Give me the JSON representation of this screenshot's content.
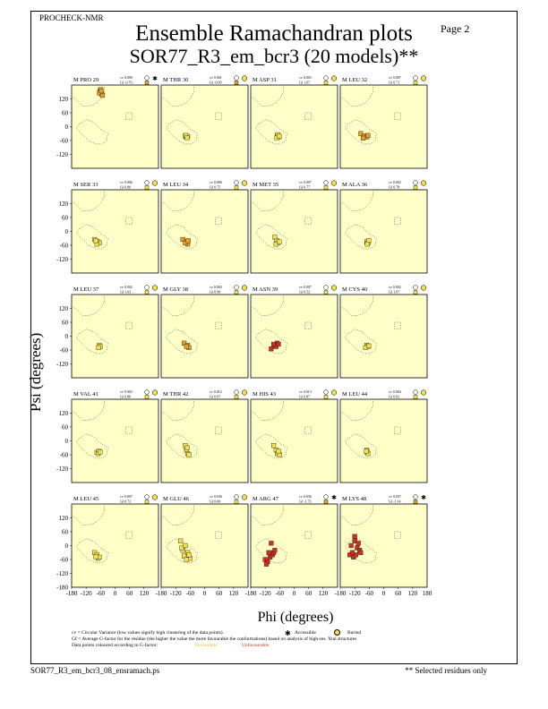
{
  "header": {
    "program": "PROCHECK-NMR",
    "page_label": "Page 2",
    "title_line1": "Ensemble Ramachandran plots",
    "title_line2": "SOR77_R3_em_bcr3 (20 models)**"
  },
  "axes": {
    "ylabel": "Psi (degrees)",
    "xlabel": "Phi (degrees)",
    "y_ticks": [
      "120",
      "60",
      "0",
      "-60",
      "-120",
      "-180"
    ],
    "x_ticks": [
      "-180",
      "-120",
      "-60",
      "0",
      "60",
      "120",
      "180"
    ]
  },
  "legend": {
    "cv_text": "cv = Circular Variance (low values signify high clustering of the data points).",
    "accessible_label": "Accessible",
    "buried_label": "Buried",
    "gf_text": "Gf = Average G-factor for the residue (the higher the value the more favourable the conformations) based on analysis of high-res. Xtal structures",
    "colour_text": "Data points coloured according to G-factor:",
    "favourable_label": "Favourable",
    "unfavourable_label": "Unfavourable"
  },
  "footer": {
    "filename": "SOR77_R3_em_bcr3_08_ensramach.ps",
    "note": "** Selected residues only"
  },
  "colors": {
    "panel_bg": "#ffffc8",
    "favourable": "#f5e24a",
    "moderate": "#e8a020",
    "unfavourable": "#d03020",
    "region_line": "#555555"
  },
  "chart_data": {
    "type": "scatter",
    "xlabel": "Phi (degrees)",
    "ylabel": "Psi (degrees)",
    "xlim": [
      -180,
      180
    ],
    "ylim": [
      -180,
      180
    ],
    "panels": [
      {
        "residue": "M PRO 29",
        "cv": "0.009",
        "gf": "-0.79",
        "access": "accessible",
        "points": [
          [
            -62,
            152
          ],
          [
            -58,
            148
          ],
          [
            -55,
            140
          ],
          [
            -60,
            160
          ],
          [
            -65,
            145
          ],
          [
            -52,
            135
          ],
          [
            -57,
            155
          ]
        ],
        "pcolor": "moderate"
      },
      {
        "residue": "M THR 30",
        "cv": "0.001",
        "gf": "-0.09",
        "access": "buried",
        "points": [
          [
            -80,
            -40
          ],
          [
            -75,
            -45
          ],
          [
            -70,
            -42
          ],
          [
            -78,
            -38
          ],
          [
            -72,
            -48
          ]
        ],
        "pcolor": "favourable"
      },
      {
        "residue": "M ASP 31",
        "cv": "0.003",
        "gf": "1.07",
        "access": "buried",
        "points": [
          [
            -70,
            -40
          ],
          [
            -65,
            -45
          ],
          [
            -68,
            -35
          ],
          [
            -72,
            -48
          ],
          [
            -62,
            -42
          ]
        ],
        "pcolor": "favourable"
      },
      {
        "residue": "M LEU 32",
        "cv": "0.007",
        "gf": "0.71",
        "access": "buried",
        "points": [
          [
            -95,
            -30
          ],
          [
            -80,
            -40
          ],
          [
            -70,
            -45
          ],
          [
            -85,
            -50
          ],
          [
            -65,
            -38
          ]
        ],
        "pcolor": "moderate"
      },
      {
        "residue": "M SER 33",
        "cv": "0.006",
        "gf": "0.80",
        "access": "buried",
        "points": [
          [
            -85,
            -35
          ],
          [
            -70,
            -45
          ],
          [
            -65,
            -50
          ],
          [
            -75,
            -55
          ],
          [
            -80,
            -40
          ]
        ],
        "pcolor": "favourable"
      },
      {
        "residue": "M LEU 34",
        "cv": "0.006",
        "gf": "0.75",
        "access": "buried",
        "points": [
          [
            -90,
            -35
          ],
          [
            -75,
            -45
          ],
          [
            -70,
            -55
          ],
          [
            -80,
            -50
          ],
          [
            -68,
            -40
          ]
        ],
        "pcolor": "moderate"
      },
      {
        "residue": "M MET 35",
        "cv": "0.007",
        "gf": "0.77",
        "access": "buried",
        "points": [
          [
            -80,
            -25
          ],
          [
            -72,
            -40
          ],
          [
            -68,
            -50
          ],
          [
            -75,
            -55
          ],
          [
            -62,
            -45
          ]
        ],
        "pcolor": "favourable"
      },
      {
        "residue": "M ALA 36",
        "cv": "0.002",
        "gf": "0.78",
        "access": "buried",
        "points": [
          [
            -70,
            -45
          ],
          [
            -65,
            -50
          ],
          [
            -62,
            -40
          ],
          [
            -68,
            -55
          ]
        ],
        "pcolor": "favourable"
      },
      {
        "residue": "M LEU 37",
        "cv": "0.002",
        "gf": "1.03",
        "access": "buried",
        "points": [
          [
            -65,
            -40
          ],
          [
            -62,
            -45
          ],
          [
            -68,
            -50
          ]
        ],
        "pcolor": "favourable"
      },
      {
        "residue": "M GLY 38",
        "cv": "0.003",
        "gf": "0.90",
        "access": "buried",
        "points": [
          [
            -85,
            -30
          ],
          [
            -70,
            -40
          ],
          [
            -65,
            -50
          ],
          [
            -75,
            -45
          ]
        ],
        "pcolor": "moderate"
      },
      {
        "residue": "M ASN 39",
        "cv": "0.007",
        "gf": "0.52",
        "access": "buried",
        "points": [
          [
            -95,
            -55
          ],
          [
            -80,
            -40
          ],
          [
            -70,
            -30
          ],
          [
            -75,
            -45
          ],
          [
            -65,
            -35
          ],
          [
            -85,
            -35
          ]
        ],
        "pcolor": "unfavourable"
      },
      {
        "residue": "M CYS 40",
        "cv": "0.002",
        "gf": "1.07",
        "access": "buried",
        "points": [
          [
            -70,
            -40
          ],
          [
            -65,
            -45
          ],
          [
            -75,
            -50
          ],
          [
            -62,
            -42
          ]
        ],
        "pcolor": "favourable"
      },
      {
        "residue": "M VAL 41",
        "cv": "0.003",
        "gf": "0.80",
        "access": "buried",
        "points": [
          [
            -75,
            -50
          ],
          [
            -68,
            -45
          ],
          [
            -70,
            -55
          ],
          [
            -62,
            -48
          ]
        ],
        "pcolor": "favourable"
      },
      {
        "residue": "M THR 42",
        "cv": "0.012",
        "gf": "0.87",
        "access": "buried",
        "points": [
          [
            -80,
            -20
          ],
          [
            -75,
            -40
          ],
          [
            -70,
            -55
          ],
          [
            -65,
            -60
          ],
          [
            -72,
            -30
          ]
        ],
        "pcolor": "favourable"
      },
      {
        "residue": "M HIS 43",
        "cv": "0.013",
        "gf": "0.87",
        "access": "buried",
        "points": [
          [
            -85,
            -20
          ],
          [
            -75,
            -40
          ],
          [
            -70,
            -55
          ],
          [
            -60,
            -60
          ],
          [
            -65,
            -45
          ]
        ],
        "pcolor": "favourable"
      },
      {
        "residue": "M LEU 44",
        "cv": "0.004",
        "gf": "0.82",
        "access": "buried",
        "points": [
          [
            -70,
            -40
          ],
          [
            -68,
            -50
          ],
          [
            -65,
            -55
          ],
          [
            -72,
            -45
          ]
        ],
        "pcolor": "favourable"
      },
      {
        "residue": "M LEU 45",
        "cv": "0.007",
        "gf": "0.73",
        "access": "buried",
        "points": [
          [
            -85,
            -30
          ],
          [
            -75,
            -40
          ],
          [
            -70,
            -55
          ],
          [
            -65,
            -50
          ],
          [
            -80,
            -48
          ]
        ],
        "pcolor": "favourable"
      },
      {
        "residue": "M GLU 46",
        "cv": "0.036",
        "gf": "0.00",
        "access": "buried",
        "points": [
          [
            -100,
            20
          ],
          [
            -90,
            -20
          ],
          [
            -85,
            -45
          ],
          [
            -70,
            -30
          ],
          [
            -60,
            -55
          ],
          [
            -95,
            -10
          ],
          [
            -75,
            -60
          ],
          [
            -80,
            0
          ],
          [
            -65,
            -40
          ]
        ],
        "pcolor": "favourable"
      },
      {
        "residue": "M ARG 47",
        "cv": "0.036",
        "gf": "-1.73",
        "access": "accessible",
        "points": [
          [
            -120,
            -60
          ],
          [
            -110,
            -70
          ],
          [
            -100,
            -50
          ],
          [
            -90,
            -40
          ],
          [
            -85,
            -30
          ],
          [
            -95,
            10
          ],
          [
            -115,
            -80
          ],
          [
            -80,
            -20
          ],
          [
            -105,
            -30
          ]
        ],
        "pcolor": "unfavourable"
      },
      {
        "residue": "M LYS 48",
        "cv": "0.037",
        "gf": "-1.14",
        "access": "accessible",
        "points": [
          [
            -140,
            -40
          ],
          [
            -130,
            -30
          ],
          [
            -120,
            20
          ],
          [
            -110,
            -10
          ],
          [
            -100,
            -20
          ],
          [
            -135,
            0
          ],
          [
            -125,
            -50
          ],
          [
            -115,
            -40
          ],
          [
            -105,
            10
          ],
          [
            -95,
            -30
          ],
          [
            -120,
            40
          ]
        ],
        "pcolor": "unfavourable"
      }
    ]
  }
}
